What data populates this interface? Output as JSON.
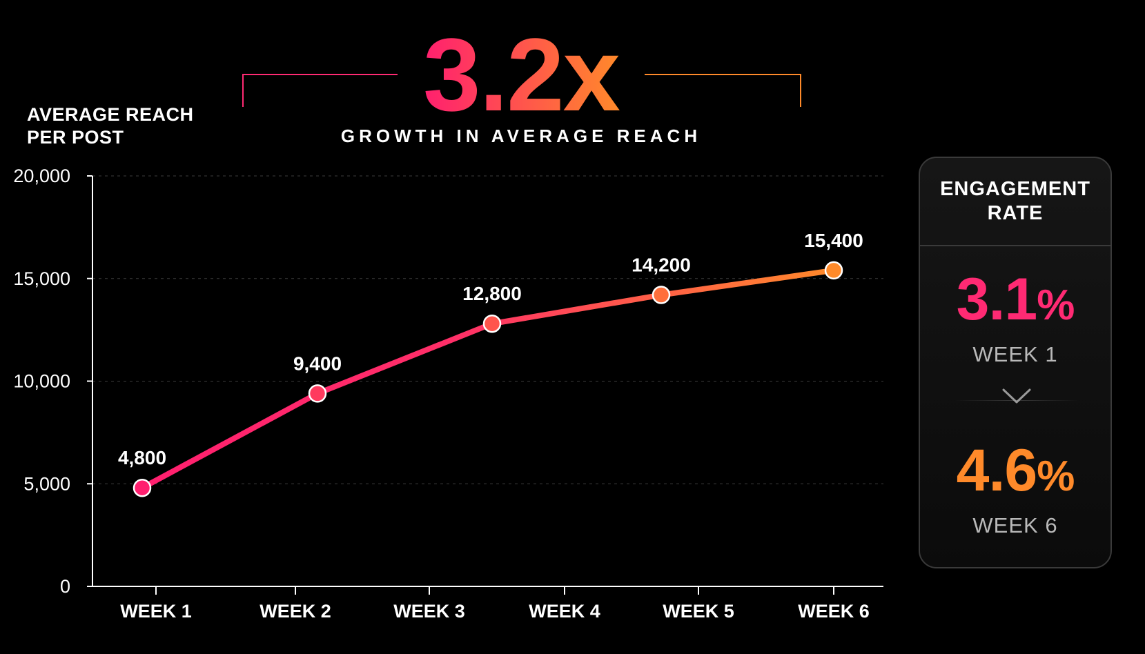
{
  "headline": {
    "value": "3.2x",
    "subtitle": "GROWTH IN AVERAGE REACH"
  },
  "chart_data": {
    "type": "line",
    "ylabel_lines": [
      "AVERAGE REACH",
      "PER POST"
    ],
    "xlabel": "",
    "categories": [
      "WEEK 1",
      "WEEK 2",
      "WEEK 3",
      "WEEK 4",
      "WEEK 5",
      "WEEK 6"
    ],
    "series": [
      {
        "values": [
          4800,
          9400,
          12800,
          null,
          14200,
          15400
        ]
      }
    ],
    "data_labels": [
      "4,800",
      "9,400",
      "12,800",
      "",
      "14,200",
      "15,400"
    ],
    "ylim": [
      0,
      20000
    ],
    "yticks": [
      0,
      5000,
      10000,
      15000,
      20000
    ],
    "ytick_labels": [
      "0",
      "5,000",
      "10,000",
      "15,000",
      "20,000"
    ],
    "grid": true,
    "colors": {
      "start": "#ff1f6f",
      "end": "#ff8a2a"
    }
  },
  "engagement_panel": {
    "title_lines": [
      "ENGAGEMENT",
      "RATE"
    ],
    "before": {
      "value": "3.1",
      "unit": "%",
      "label": "WEEK 1",
      "color": "#ff2a73"
    },
    "after": {
      "value": "4.6",
      "unit": "%",
      "label": "WEEK 6",
      "color": "#ff8a2a"
    },
    "arrow_icon": "chevron-down-icon"
  }
}
